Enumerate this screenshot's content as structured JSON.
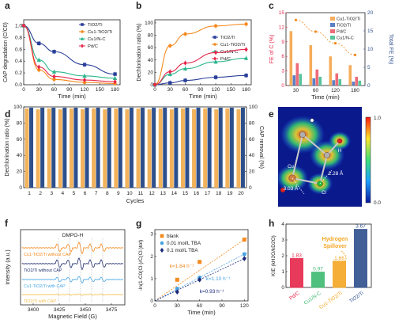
{
  "chart_data": [
    {
      "id": "a",
      "panel_label": "a",
      "type": "line",
      "xlabel": "Time (min)",
      "ylabel": "CAP degradation (C/C0)",
      "xlim": [
        0,
        190
      ],
      "ylim": [
        0,
        1.1
      ],
      "xticks": [
        "0",
        "30",
        "60",
        "90",
        "120",
        "150",
        "180"
      ],
      "yticks": [
        "0.0",
        "0.2",
        "0.4",
        "0.6",
        "0.8",
        "1.0"
      ],
      "legend_position": "top-right",
      "x": [
        0,
        30,
        60,
        120,
        180
      ],
      "series": [
        {
          "name": "TiO2/Ti",
          "color": "#2a3f9a",
          "marker": "square",
          "values": [
            1.0,
            0.7,
            0.56,
            0.34,
            0.18
          ]
        },
        {
          "name": "Cu1-TiO2/Ti",
          "color": "#f58a1f",
          "marker": "circle",
          "values": [
            1.0,
            0.25,
            0.09,
            0.04,
            0.02
          ]
        },
        {
          "name": "Cu1/N-C",
          "color": "#2ab58c",
          "marker": "triangle",
          "values": [
            1.0,
            0.42,
            0.22,
            0.15,
            0.11
          ]
        },
        {
          "name": "Pd/C",
          "color": "#e6264a",
          "marker": "diamond",
          "values": [
            1.0,
            0.3,
            0.14,
            0.08,
            0.05
          ]
        }
      ]
    },
    {
      "id": "b",
      "panel_label": "b",
      "type": "line",
      "xlabel": "Time (min)",
      "ylabel": "Dechlorination ratio (%)",
      "xlim": [
        0,
        190
      ],
      "ylim": [
        0,
        105
      ],
      "xticks": [
        "0",
        "30",
        "60",
        "90",
        "120",
        "150",
        "180"
      ],
      "yticks": [
        "0",
        "20",
        "40",
        "60",
        "80",
        "100"
      ],
      "legend_position": "bottom-right",
      "x": [
        0,
        30,
        60,
        120,
        180
      ],
      "series": [
        {
          "name": "TiO2/Ti",
          "color": "#2a3f9a",
          "marker": "square",
          "values": [
            0,
            3,
            7,
            12,
            15
          ]
        },
        {
          "name": "Cu1-TiO2/Ti",
          "color": "#f58a1f",
          "marker": "circle",
          "values": [
            0,
            63,
            82,
            95,
            98
          ]
        },
        {
          "name": "Cu1/N-C",
          "color": "#2ab58c",
          "marker": "triangle",
          "values": [
            0,
            17,
            26,
            37,
            43
          ]
        },
        {
          "name": "Pd/C",
          "color": "#e6264a",
          "marker": "diamond",
          "values": [
            0,
            21,
            35,
            52,
            57
          ]
        }
      ]
    },
    {
      "id": "c",
      "panel_label": "c",
      "type": "bar",
      "xlabel": "Time (min)",
      "ylabel": "FE of C (%)",
      "ylabel_right": "Total FE (%)",
      "ylim": [
        0,
        15
      ],
      "ylim_right": [
        0,
        20
      ],
      "yticks": [
        "0",
        "3",
        "6",
        "9",
        "12",
        "15"
      ],
      "yticks_right": [
        "0",
        "5",
        "10",
        "15",
        "20"
      ],
      "categories": [
        "30",
        "60",
        "120",
        "180"
      ],
      "legend_position": "right",
      "series": [
        {
          "name": "Cu1-TiO2/Ti",
          "color": "#f5ad5b",
          "values": [
            11.2,
            8.3,
            6.0,
            4.2
          ]
        },
        {
          "name": "TiO2/Ti",
          "color": "#5c7fc4",
          "values": [
            2.1,
            1.5,
            1.1,
            0.8
          ]
        },
        {
          "name": "Pd/C",
          "color": "#ee6a78",
          "values": [
            4.6,
            3.3,
            2.5,
            1.8
          ]
        },
        {
          "name": "Cu1/N-C",
          "color": "#57c49b",
          "values": [
            2.4,
            1.8,
            1.3,
            1.0
          ]
        }
      ]
    },
    {
      "id": "d",
      "panel_label": "d",
      "type": "bar",
      "xlabel": "Cycles",
      "ylabel": "Dechlorination ratio (%)",
      "ylabel_right": "CAP removal (%)",
      "ylim": [
        0,
        100
      ],
      "yticks": [
        "0",
        "20",
        "40",
        "60",
        "80",
        "100"
      ],
      "categories": [
        "1",
        "2",
        "3",
        "4",
        "5",
        "6",
        "7",
        "8",
        "9",
        "10",
        "11",
        "12",
        "13",
        "14",
        "15",
        "16",
        "17",
        "18",
        "19",
        "20"
      ],
      "series": [
        {
          "name": "Dechlorination ratio",
          "color": "#f2b25c",
          "values": [
            98,
            97,
            98,
            97,
            98,
            97,
            98,
            97,
            98,
            97,
            98,
            97,
            98,
            97,
            98,
            97,
            98,
            97,
            98,
            97
          ]
        },
        {
          "name": "CAP removal",
          "color": "#2d4f8c",
          "values": [
            99,
            99,
            99,
            99,
            99,
            99,
            99,
            99,
            99,
            99,
            99,
            99,
            99,
            99,
            99,
            99,
            99,
            99,
            99,
            99
          ]
        }
      ]
    },
    {
      "id": "f",
      "panel_label": "f",
      "type": "line",
      "xlabel": "Magnetic Field (G)",
      "ylabel": "Intensity (a.u.)",
      "xticks": [
        "3400",
        "3425",
        "3450",
        "3475"
      ],
      "annotation": "DMPO-H",
      "series": [
        {
          "name": "Cu1-TiO2/Ti without CAP",
          "color": "#f58a1f"
        },
        {
          "name": "TiO2/Ti without CAP",
          "color": "#1e2e6e"
        },
        {
          "name": "Cu1-TiO2/Ti with CAP",
          "color": "#46a7e6"
        },
        {
          "name": "TiO2/Ti with CAP",
          "color": "#f5c04f"
        }
      ]
    },
    {
      "id": "g",
      "panel_label": "g",
      "type": "scatter",
      "xlabel": "Time (min)",
      "ylabel": "-ln(1-C0(Cl-)/C(Cl-)tot)",
      "xlim": [
        0,
        125
      ],
      "ylim": [
        0,
        3.2
      ],
      "xticks": [
        "0",
        "30",
        "60",
        "90",
        "120"
      ],
      "yticks": [
        "0",
        "1",
        "2",
        "3"
      ],
      "legend_position": "top-left",
      "series": [
        {
          "name": "blank",
          "color": "#f58a1f",
          "marker": "square",
          "x": [
            30,
            60,
            120
          ],
          "values": [
            0.95,
            1.75,
            2.75
          ]
        },
        {
          "name": "0.01 mol/L TBA",
          "color": "#4aa3e0",
          "marker": "circle",
          "x": [
            30,
            60,
            120
          ],
          "values": [
            0.55,
            1.05,
            2.1
          ]
        },
        {
          "name": "0.1 mol/L TBA",
          "color": "#1a2a78",
          "marker": "diamond",
          "x": [
            30,
            60,
            120
          ],
          "values": [
            0.4,
            0.95,
            1.9
          ]
        }
      ],
      "annotations": [
        "k=1.84 h⁻¹",
        "k=1.10 h⁻¹",
        "k=0.93 h⁻¹"
      ]
    },
    {
      "id": "h",
      "panel_label": "h",
      "type": "bar",
      "ylabel": "KIE (kH2O/kD2O)",
      "ylim": [
        0,
        4
      ],
      "yticks": [
        "0",
        "1",
        "2",
        "3",
        "4"
      ],
      "categories": [
        "Pd/C",
        "Cu1/N-C",
        "Cu1-TiO2/Ti",
        "TiO2/Ti"
      ],
      "values": [
        1.83,
        0.97,
        1.66,
        3.67
      ],
      "value_labels": [
        "1.83",
        "0.97",
        "1.66",
        "3.67"
      ],
      "colors": [
        "#e6264a",
        "#3cba6f",
        "#f5a623",
        "#2d4f8c"
      ],
      "annotation": "Hydrogen Spillover"
    }
  ],
  "panel_e": {
    "panel_label": "e",
    "colorbar_max": "1.0",
    "colorbar_min": "0.0",
    "labels": [
      "2.28 Å",
      "3.03 Å",
      "Cu",
      "Cl",
      "H"
    ]
  }
}
